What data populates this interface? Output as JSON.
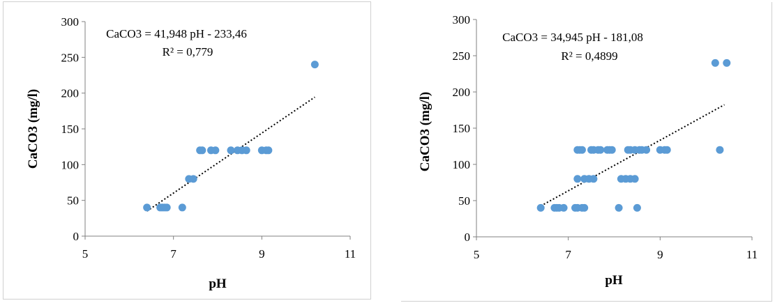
{
  "chart_data": [
    {
      "type": "scatter",
      "title": "",
      "xlabel": "pH",
      "ylabel": "CaCO3  (mg/l)",
      "xlim": [
        5,
        11
      ],
      "ylim": [
        0,
        300
      ],
      "xticks": [
        "5",
        "7",
        "9",
        "11"
      ],
      "yticks": [
        "0",
        "50",
        "100",
        "150",
        "200",
        "250",
        "300"
      ],
      "grid": false,
      "legend": "none",
      "colors": {
        "points": "#5b9bd5",
        "trendline": "#000000"
      },
      "series": [
        {
          "points": [
            [
              6.4,
              40
            ],
            [
              6.7,
              40
            ],
            [
              6.75,
              40
            ],
            [
              6.8,
              40
            ],
            [
              6.85,
              40
            ],
            [
              7.2,
              40
            ],
            [
              7.35,
              80
            ],
            [
              7.45,
              80
            ],
            [
              7.6,
              120
            ],
            [
              7.65,
              120
            ],
            [
              7.85,
              120
            ],
            [
              7.95,
              120
            ],
            [
              8.3,
              120
            ],
            [
              8.45,
              120
            ],
            [
              8.55,
              120
            ],
            [
              8.65,
              120
            ],
            [
              9.0,
              120
            ],
            [
              9.1,
              120
            ],
            [
              9.15,
              120
            ],
            [
              10.2,
              240
            ]
          ]
        }
      ],
      "trendline": {
        "slope": 41.948,
        "intercept": -233.46,
        "x_range": [
          6.4,
          10.2
        ],
        "style": "dotted"
      },
      "annotations": {
        "equation": "CaCO3 = 41,948 pH - 233,46",
        "r2": "R² = 0,779"
      }
    },
    {
      "type": "scatter",
      "title": "",
      "xlabel": "pH",
      "ylabel": "CaCO3  (mg/l)",
      "xlim": [
        5,
        11
      ],
      "ylim": [
        0,
        300
      ],
      "xticks": [
        "5",
        "7",
        "9",
        "11"
      ],
      "yticks": [
        "0",
        "50",
        "100",
        "150",
        "200",
        "250",
        "300"
      ],
      "grid": false,
      "legend": "none",
      "colors": {
        "points": "#5b9bd5",
        "trendline": "#000000"
      },
      "series": [
        {
          "points": [
            [
              6.4,
              40
            ],
            [
              6.7,
              40
            ],
            [
              6.75,
              40
            ],
            [
              6.8,
              40
            ],
            [
              6.9,
              40
            ],
            [
              7.15,
              40
            ],
            [
              7.2,
              40
            ],
            [
              7.3,
              40
            ],
            [
              7.35,
              40
            ],
            [
              8.1,
              40
            ],
            [
              8.5,
              40
            ],
            [
              7.2,
              80
            ],
            [
              7.35,
              80
            ],
            [
              7.45,
              80
            ],
            [
              7.55,
              80
            ],
            [
              8.15,
              80
            ],
            [
              8.25,
              80
            ],
            [
              8.35,
              80
            ],
            [
              8.45,
              80
            ],
            [
              7.2,
              120
            ],
            [
              7.25,
              120
            ],
            [
              7.3,
              120
            ],
            [
              7.5,
              120
            ],
            [
              7.55,
              120
            ],
            [
              7.65,
              120
            ],
            [
              7.7,
              120
            ],
            [
              7.85,
              120
            ],
            [
              7.9,
              120
            ],
            [
              7.95,
              120
            ],
            [
              8.3,
              120
            ],
            [
              8.35,
              120
            ],
            [
              8.45,
              120
            ],
            [
              8.55,
              120
            ],
            [
              8.6,
              120
            ],
            [
              8.7,
              120
            ],
            [
              9.0,
              120
            ],
            [
              9.1,
              120
            ],
            [
              9.15,
              120
            ],
            [
              10.3,
              120
            ],
            [
              10.2,
              240
            ],
            [
              10.45,
              240
            ]
          ]
        }
      ],
      "trendline": {
        "slope": 34.945,
        "intercept": -181.08,
        "x_range": [
          6.4,
          10.4
        ],
        "style": "dotted"
      },
      "annotations": {
        "equation": "CaCO3 = 34,945 pH - 181,08",
        "r2": "R² = 0,4899"
      }
    }
  ]
}
